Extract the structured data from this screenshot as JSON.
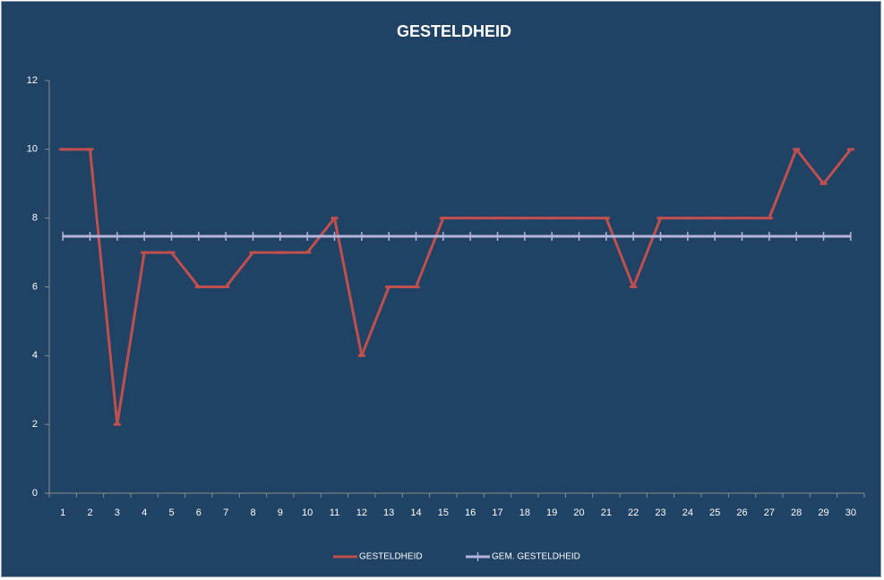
{
  "chart_data": {
    "type": "line",
    "title": "GESTELDHEID",
    "categories": [
      "1",
      "2",
      "3",
      "4",
      "5",
      "6",
      "7",
      "8",
      "9",
      "10",
      "11",
      "12",
      "13",
      "14",
      "15",
      "16",
      "17",
      "18",
      "19",
      "20",
      "21",
      "22",
      "23",
      "24",
      "25",
      "26",
      "27",
      "28",
      "29",
      "30"
    ],
    "series": [
      {
        "name": "GESTELDHEID",
        "color": "#c0504d",
        "values": [
          10,
          10,
          2,
          7,
          7,
          6,
          6,
          7,
          7,
          7,
          8,
          4,
          6,
          6,
          8,
          8,
          8,
          8,
          8,
          8,
          8,
          6,
          8,
          8,
          8,
          8,
          8,
          10,
          9,
          10
        ]
      },
      {
        "name": "GEM. GESTELDHEID",
        "color": "#b4b4dc",
        "values": [
          7.47,
          7.47,
          7.47,
          7.47,
          7.47,
          7.47,
          7.47,
          7.47,
          7.47,
          7.47,
          7.47,
          7.47,
          7.47,
          7.47,
          7.47,
          7.47,
          7.47,
          7.47,
          7.47,
          7.47,
          7.47,
          7.47,
          7.47,
          7.47,
          7.47,
          7.47,
          7.47,
          7.47,
          7.47,
          7.47
        ]
      }
    ],
    "ylim": [
      0,
      12
    ],
    "yticks": [
      0,
      2,
      4,
      6,
      8,
      10,
      12
    ],
    "legend": "bottom"
  }
}
